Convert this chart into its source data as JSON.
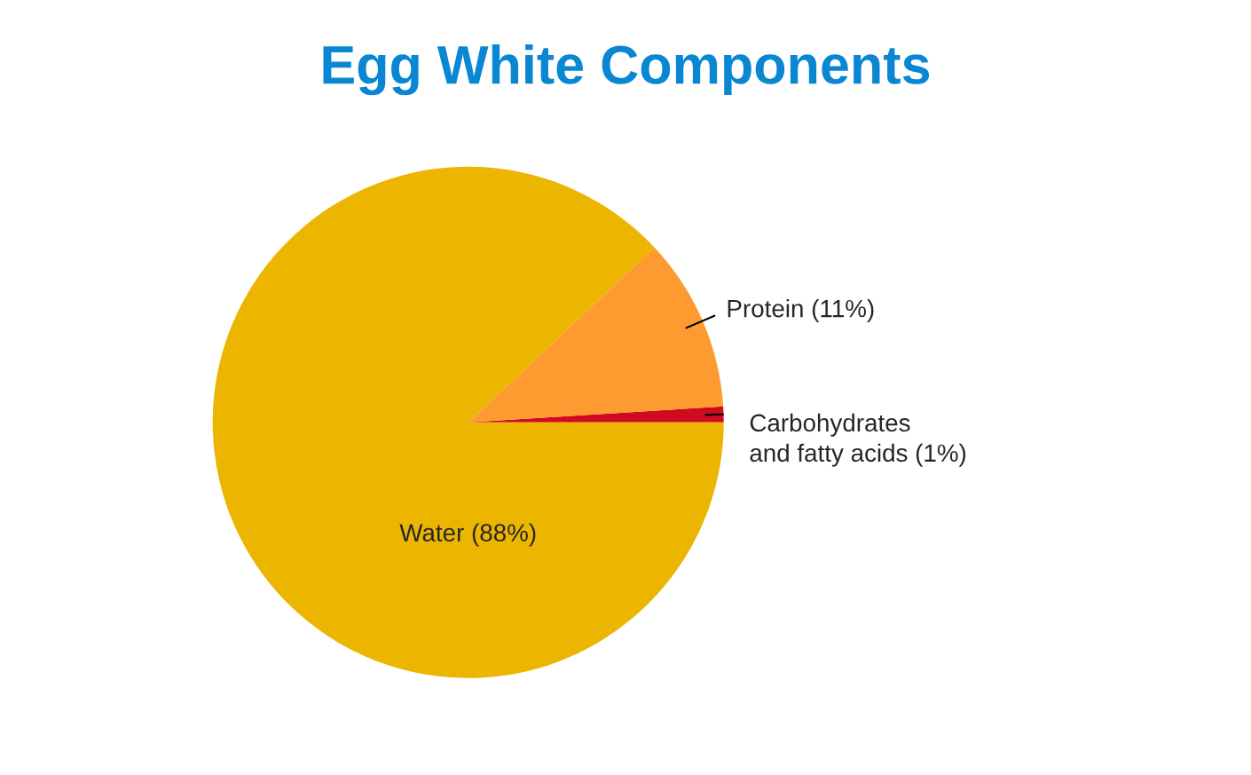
{
  "chart_data": {
    "type": "pie",
    "title": "Egg White Components",
    "categories": [
      "Carbohydrates\nand fatty acids (1%)",
      "Protein (11%)",
      "Water (88%)"
    ],
    "values": [
      1,
      11,
      88
    ],
    "colors": [
      "#d10a1f",
      "#fd9a30",
      "#ecb500"
    ]
  }
}
